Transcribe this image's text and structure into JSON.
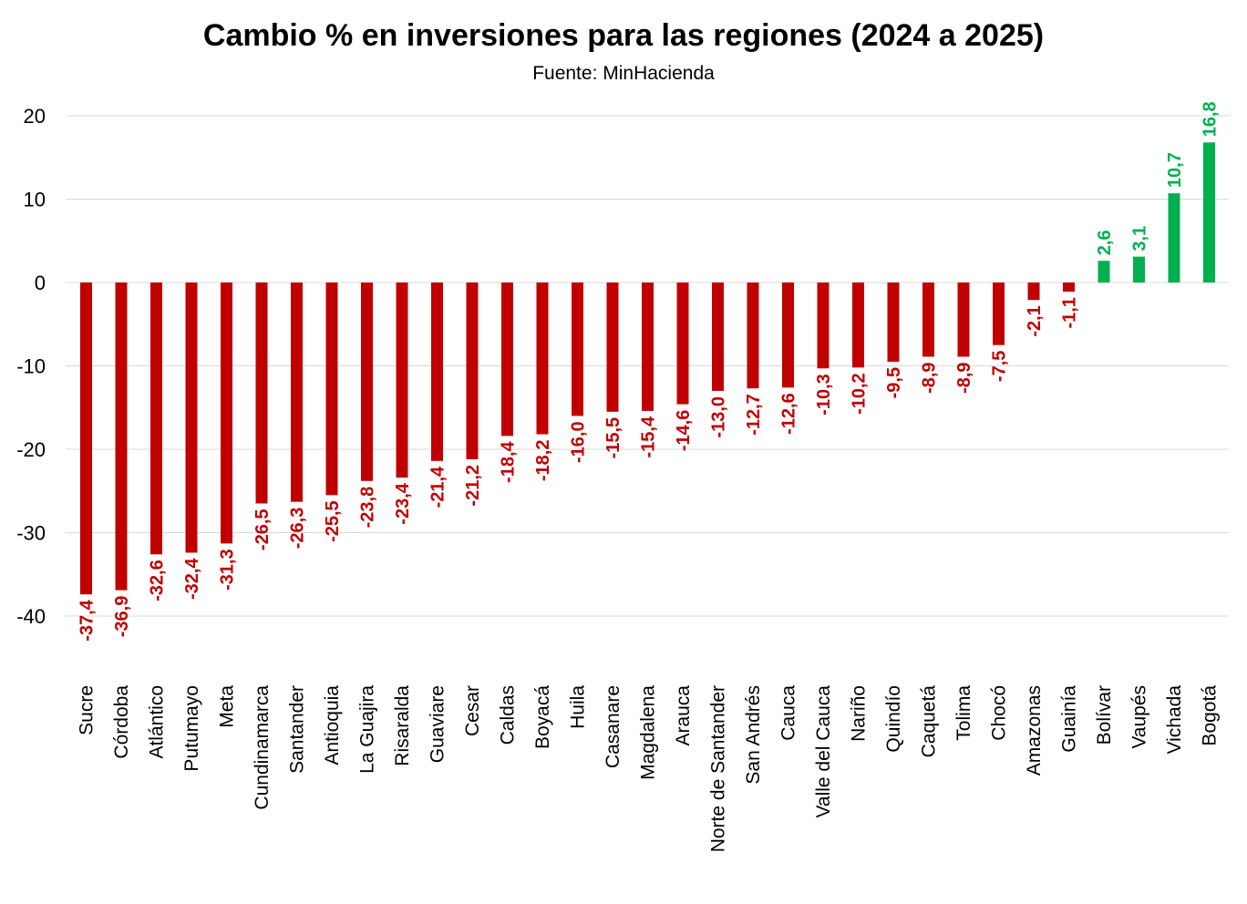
{
  "chart_data": {
    "type": "bar",
    "title": "Cambio % en inversiones para las regiones (2024 a 2025)",
    "subtitle": "Fuente: MinHacienda",
    "xlabel": "",
    "ylabel": "",
    "ylim": [
      -40,
      20
    ],
    "yticks": [
      "20",
      "10",
      "0",
      "-10",
      "-20",
      "-30",
      "-40"
    ],
    "grid": true,
    "legend": "none",
    "colors": {
      "negative": "#C00000",
      "positive": "#00B050",
      "grid": "#d9d9d9"
    },
    "categories": [
      "Sucre",
      "Córdoba",
      "Atlántico",
      "Putumayo",
      "Meta",
      "Cundinamarca",
      "Santander",
      "Antioquia",
      "La Guajira",
      "Risaralda",
      "Guaviare",
      "Cesar",
      "Caldas",
      "Boyacá",
      "Huila",
      "Casanare",
      "Magdalena",
      "Arauca",
      "Norte de Santander",
      "San Andrés",
      "Cauca",
      "Valle del Cauca",
      "Nariño",
      "Quindío",
      "Caquetá",
      "Tolima",
      "Chocó",
      "Amazonas",
      "Guainía",
      "Bolívar",
      "Vaupés",
      "Vichada",
      "Bogotá"
    ],
    "values": [
      -37.4,
      -36.9,
      -32.6,
      -32.4,
      -31.3,
      -26.5,
      -26.3,
      -25.5,
      -23.8,
      -23.4,
      -21.4,
      -21.2,
      -18.4,
      -18.2,
      -16.0,
      -15.5,
      -15.4,
      -14.6,
      -13.0,
      -12.7,
      -12.6,
      -10.3,
      -10.2,
      -9.5,
      -8.9,
      -8.9,
      -7.5,
      -2.1,
      -1.1,
      2.6,
      3.1,
      10.7,
      16.8
    ],
    "data_labels": [
      "-37,4",
      "-36,9",
      "-32,6",
      "-32,4",
      "-31,3",
      "-26,5",
      "-26,3",
      "-25,5",
      "-23,8",
      "-23,4",
      "-21,4",
      "-21,2",
      "-18,4",
      "-18,2",
      "-16,0",
      "-15,5",
      "-15,4",
      "-14,6",
      "-13,0",
      "-12,7",
      "-12,6",
      "-10,3",
      "-10,2",
      "-9,5",
      "-8,9",
      "-8,9",
      "-7,5",
      "-2,1",
      "-1,1",
      "2,6",
      "3,1",
      "10,7",
      "16,8"
    ]
  }
}
